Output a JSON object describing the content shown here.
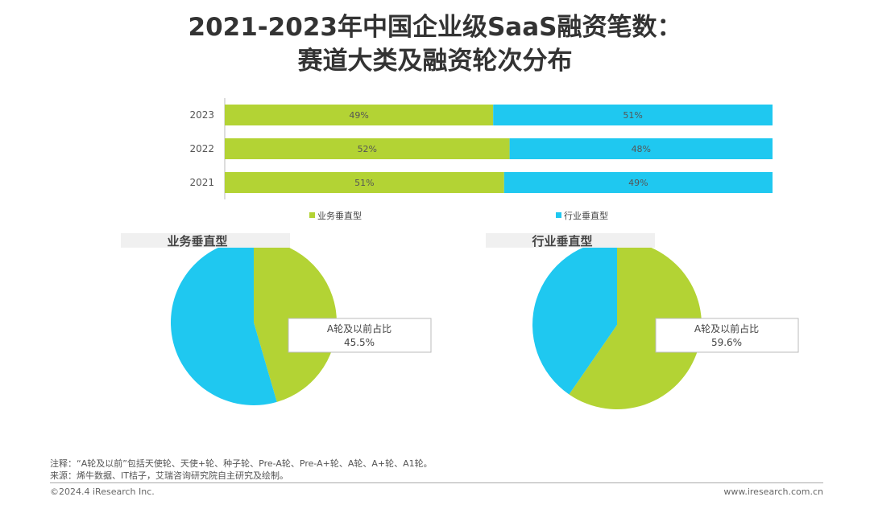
{
  "title_line1": "2021-2023年中国企业级SaaS融资笔数：",
  "title_line2": "赛道大类及融资轮次分布",
  "chart_data": [
    {
      "type": "bar",
      "orientation": "horizontal",
      "stacked": "100%",
      "categories": [
        "2023",
        "2022",
        "2021"
      ],
      "series": [
        {
          "name": "业务垂直型",
          "values": [
            49,
            52,
            51
          ],
          "labels": [
            "49%",
            "52%",
            "51%"
          ],
          "color": "#b3d334"
        },
        {
          "name": "行业垂直型",
          "values": [
            51,
            48,
            49
          ],
          "labels": [
            "51%",
            "48%",
            "49%"
          ],
          "color": "#1fc8f0"
        }
      ],
      "legend": "bottom"
    },
    {
      "type": "pie",
      "title": "业务垂直型",
      "slices": [
        {
          "label": "A轮及以前占比",
          "value": 45.5,
          "color": "#b3d334"
        },
        {
          "value": 54.5,
          "color": "#1fc8f0"
        }
      ],
      "annotation": {
        "label": "A轮及以前占比",
        "value": "45.5%"
      }
    },
    {
      "type": "pie",
      "title": "行业垂直型",
      "slices": [
        {
          "label": "A轮及以前占比",
          "value": 59.6,
          "color": "#b3d334"
        },
        {
          "value": 40.4,
          "color": "#1fc8f0"
        }
      ],
      "annotation": {
        "label": "A轮及以前占比",
        "value": "59.6%"
      }
    }
  ],
  "notes": {
    "note": "注释：“A轮及以前”包括天使轮、天使+轮、种子轮、Pre-A轮、Pre-A+轮、A轮、A+轮、A1轮。",
    "source": "来源：烯牛数据、IT桔子，艾瑞咨询研究院自主研究及绘制。"
  },
  "footer": {
    "copyright": "©2024.4 iResearch Inc.",
    "website": "www.iresearch.com.cn"
  }
}
